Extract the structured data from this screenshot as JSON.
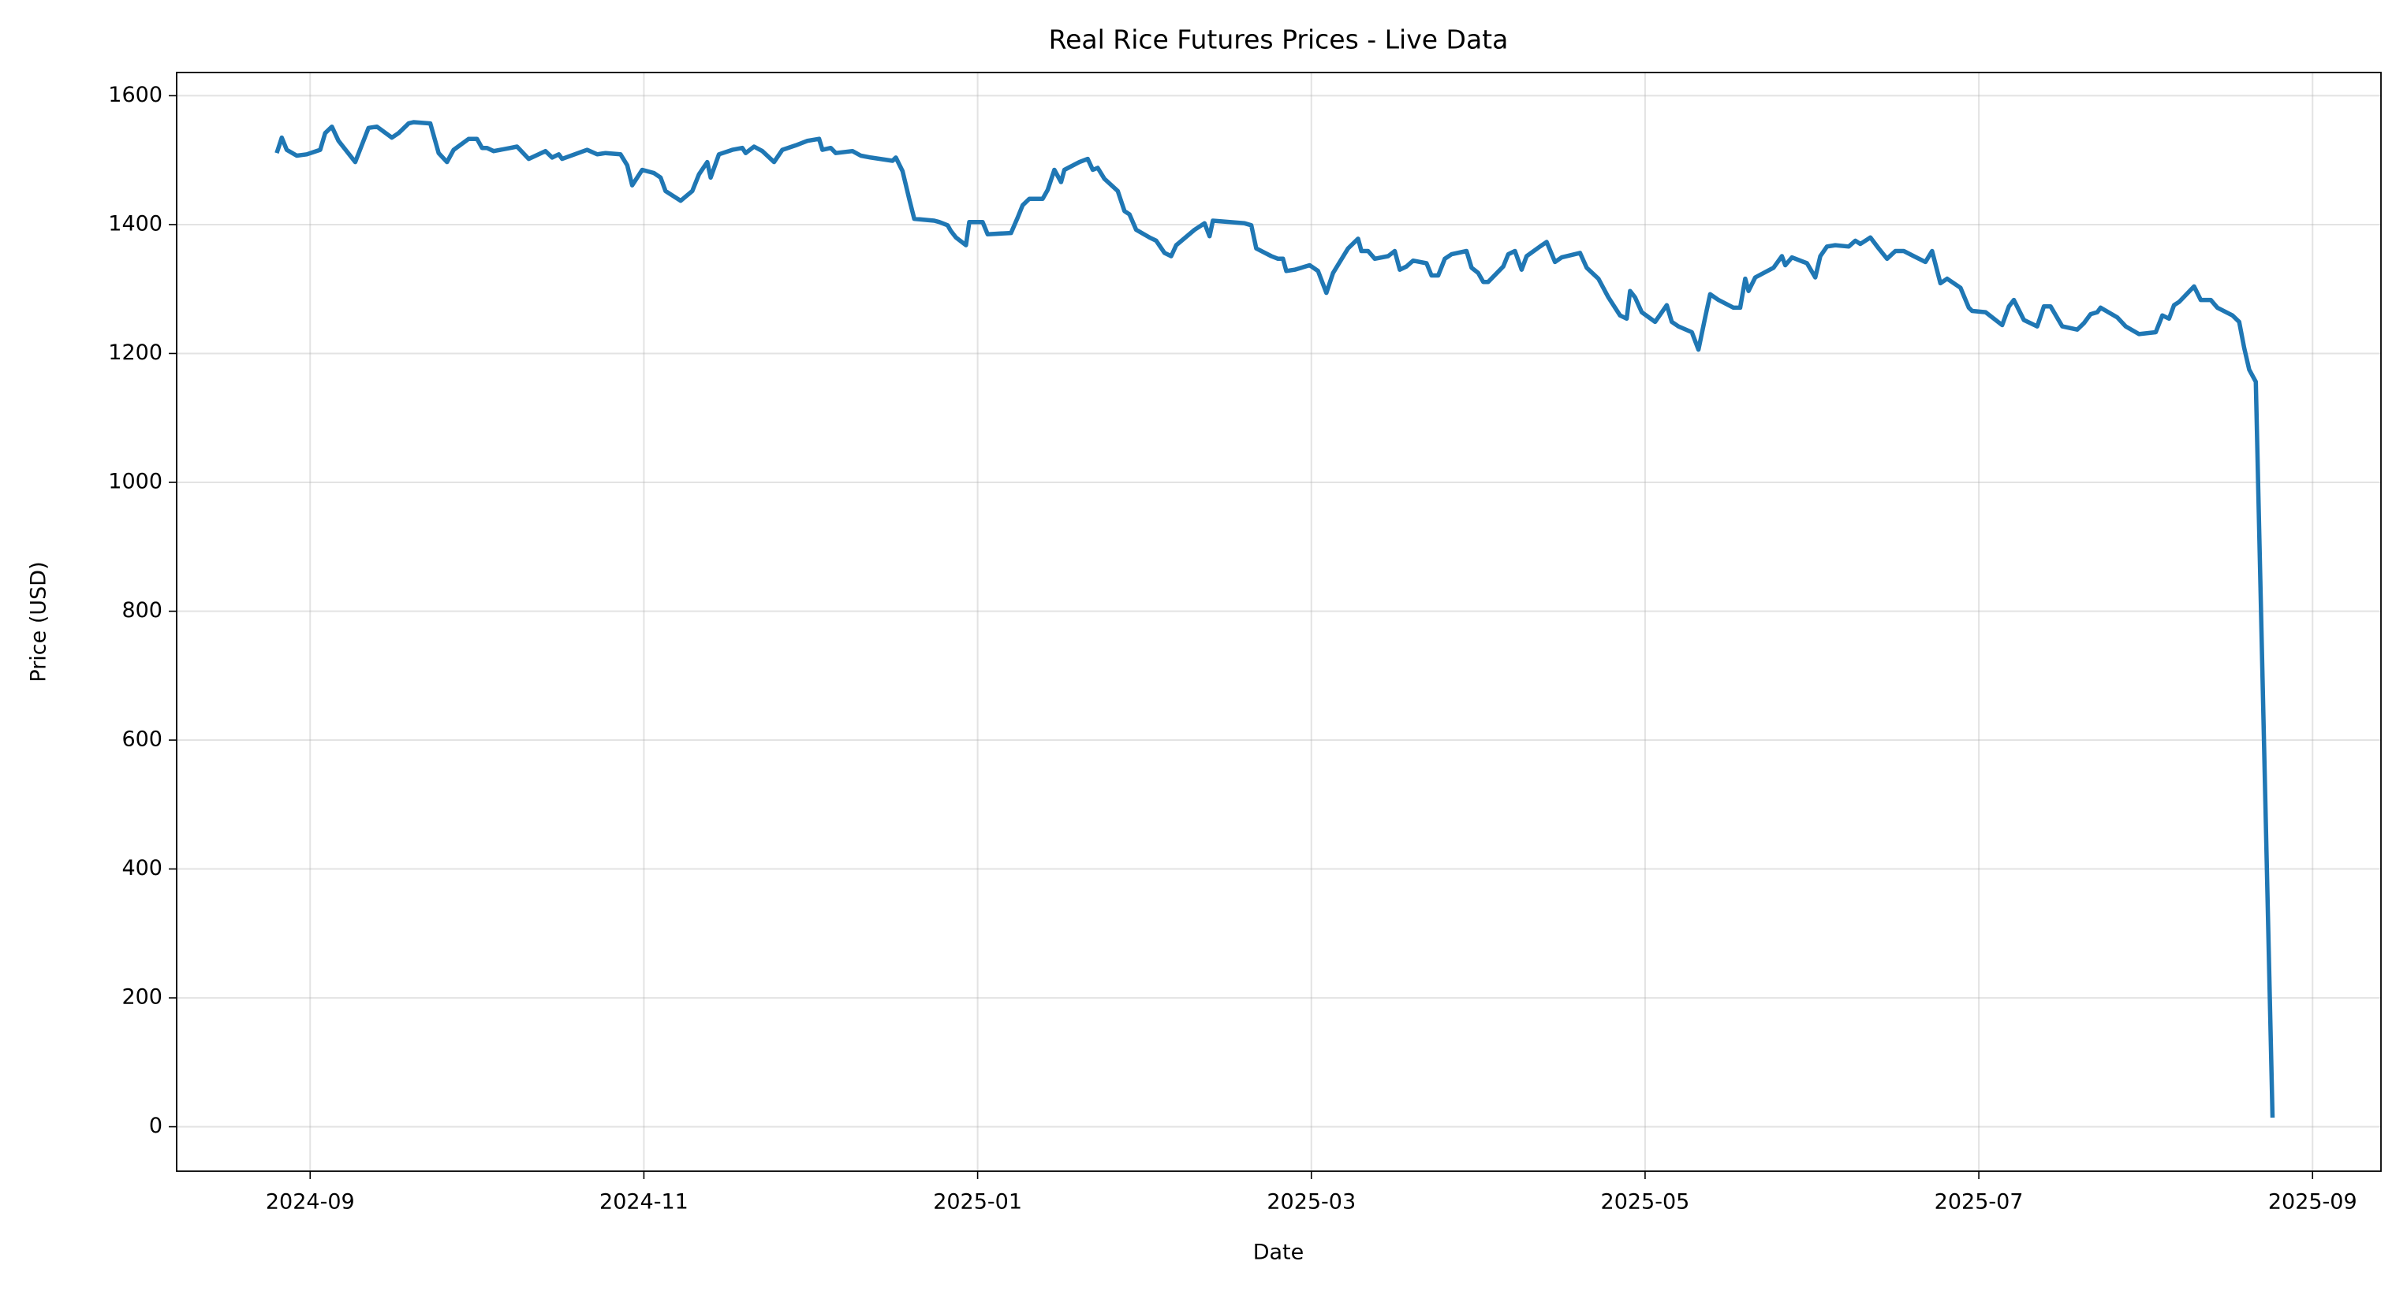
{
  "chart_data": {
    "type": "line",
    "title": "Real Rice Futures Prices - Live Data",
    "x_label": "Date",
    "y_label": "Price (USD)",
    "x": [
      8.8,
      8.83,
      8.86,
      8.92,
      8.98,
      9.06,
      9.09,
      9.13,
      9.17,
      9.27,
      9.35,
      9.4,
      9.49,
      9.53,
      9.59,
      9.62,
      9.72,
      9.77,
      9.82,
      9.86,
      9.95,
      10.0,
      10.03,
      10.06,
      10.1,
      10.2,
      10.24,
      10.31,
      10.41,
      10.45,
      10.49,
      10.51,
      10.66,
      10.72,
      10.77,
      10.86,
      10.9,
      10.93,
      10.99,
      11.06,
      11.1,
      11.13,
      11.22,
      11.29,
      11.33,
      11.38,
      11.4,
      11.45,
      11.53,
      11.59,
      11.61,
      11.66,
      11.71,
      11.78,
      11.83,
      11.91,
      11.98,
      12.05,
      12.07,
      12.12,
      12.15,
      12.25,
      12.3,
      12.36,
      12.49,
      12.51,
      12.55,
      12.59,
      12.62,
      12.74,
      12.77,
      12.82,
      12.84,
      12.87,
      12.93,
      12.95,
      13.03,
      13.06,
      13.2,
      13.24,
      13.27,
      13.31,
      13.39,
      13.42,
      13.46,
      13.5,
      13.52,
      13.61,
      13.66,
      13.69,
      13.72,
      13.76,
      13.84,
      13.88,
      13.91,
      13.95,
      14.03,
      14.07,
      14.12,
      14.16,
      14.19,
      14.3,
      14.36,
      14.39,
      14.41,
      14.6,
      14.64,
      14.67,
      14.76,
      14.8,
      14.83,
      14.85,
      14.9,
      14.99,
      15.04,
      15.09,
      15.13,
      15.22,
      15.28,
      15.3,
      15.34,
      15.38,
      15.46,
      15.5,
      15.53,
      15.57,
      15.61,
      15.69,
      15.72,
      15.76,
      15.8,
      15.84,
      15.93,
      15.96,
      16.0,
      16.03,
      16.06,
      16.15,
      16.18,
      16.22,
      16.26,
      16.29,
      16.37,
      16.41,
      16.46,
      16.5,
      16.61,
      16.65,
      16.72,
      16.78,
      16.85,
      16.89,
      16.91,
      16.94,
      16.98,
      17.06,
      17.13,
      17.16,
      17.2,
      17.28,
      17.32,
      17.36,
      17.39,
      17.44,
      17.53,
      17.57,
      17.6,
      17.62,
      17.66,
      17.77,
      17.82,
      17.84,
      17.88,
      17.97,
      18.02,
      18.05,
      18.09,
      18.14,
      18.22,
      18.26,
      18.29,
      18.35,
      18.4,
      18.45,
      18.5,
      18.55,
      18.61,
      18.68,
      18.72,
      18.77,
      18.81,
      18.89,
      18.94,
      18.96,
      19.04,
      19.14,
      19.18,
      19.21,
      19.27,
      19.35,
      19.39,
      19.43,
      19.5,
      19.59,
      19.63,
      19.67,
      19.71,
      19.73,
      19.83,
      19.88,
      19.96,
      20.06,
      20.1,
      20.14,
      20.17,
      20.2,
      20.29,
      20.33,
      20.39,
      20.43,
      20.52,
      20.56,
      20.59,
      20.62,
      20.66,
      20.76
    ],
    "series": [
      {
        "color": "#1f77b4",
        "values": [
          1511,
          1535,
          1516,
          1507,
          1509,
          1516,
          1542,
          1552,
          1530,
          1497,
          1550,
          1552,
          1535,
          1542,
          1557,
          1559,
          1557,
          1511,
          1497,
          1516,
          1533,
          1533,
          1519,
          1519,
          1514,
          1519,
          1521,
          1502,
          1514,
          1504,
          1509,
          1502,
          1516,
          1509,
          1511,
          1509,
          1492,
          1461,
          1485,
          1480,
          1473,
          1452,
          1437,
          1452,
          1478,
          1497,
          1473,
          1509,
          1516,
          1519,
          1511,
          1521,
          1514,
          1497,
          1516,
          1523,
          1530,
          1533,
          1516,
          1519,
          1511,
          1514,
          1507,
          1504,
          1499,
          1504,
          1483,
          1440,
          1409,
          1406,
          1404,
          1399,
          1390,
          1380,
          1368,
          1404,
          1404,
          1385,
          1387,
          1411,
          1430,
          1440,
          1440,
          1454,
          1485,
          1466,
          1485,
          1497,
          1502,
          1485,
          1488,
          1471,
          1452,
          1421,
          1416,
          1392,
          1380,
          1375,
          1356,
          1351,
          1368,
          1392,
          1402,
          1382,
          1406,
          1402,
          1399,
          1363,
          1351,
          1347,
          1347,
          1328,
          1330,
          1337,
          1328,
          1294,
          1325,
          1363,
          1378,
          1359,
          1359,
          1347,
          1351,
          1359,
          1330,
          1335,
          1344,
          1340,
          1321,
          1321,
          1347,
          1354,
          1359,
          1333,
          1325,
          1311,
          1311,
          1335,
          1354,
          1359,
          1330,
          1351,
          1366,
          1373,
          1342,
          1349,
          1356,
          1333,
          1316,
          1287,
          1259,
          1254,
          1297,
          1287,
          1264,
          1249,
          1275,
          1249,
          1242,
          1233,
          1206,
          1256,
          1292,
          1283,
          1271,
          1271,
          1316,
          1297,
          1318,
          1333,
          1351,
          1337,
          1349,
          1340,
          1318,
          1351,
          1366,
          1368,
          1366,
          1375,
          1370,
          1380,
          1363,
          1347,
          1359,
          1359,
          1351,
          1342,
          1359,
          1309,
          1316,
          1302,
          1271,
          1266,
          1264,
          1244,
          1273,
          1283,
          1252,
          1242,
          1273,
          1273,
          1242,
          1237,
          1247,
          1261,
          1264,
          1271,
          1256,
          1242,
          1230,
          1233,
          1259,
          1254,
          1275,
          1280,
          1304,
          1283,
          1283,
          1271,
          1259,
          1249,
          1209,
          1175,
          1156,
          14
        ]
      }
    ],
    "xlim": [
      8.2,
      21.41
    ],
    "xticks": [
      {
        "value": 9,
        "label": "2024-09"
      },
      {
        "value": 11,
        "label": "2024-11"
      },
      {
        "value": 13,
        "label": "2025-01"
      },
      {
        "value": 15,
        "label": "2025-03"
      },
      {
        "value": 17,
        "label": "2025-05"
      },
      {
        "value": 19,
        "label": "2025-07"
      },
      {
        "value": 21,
        "label": "2025-09"
      }
    ],
    "ylim": [
      -69,
      1636
    ],
    "yticks": [
      0,
      200,
      400,
      600,
      800,
      1000,
      1200,
      1400,
      1600
    ],
    "grid": true
  }
}
